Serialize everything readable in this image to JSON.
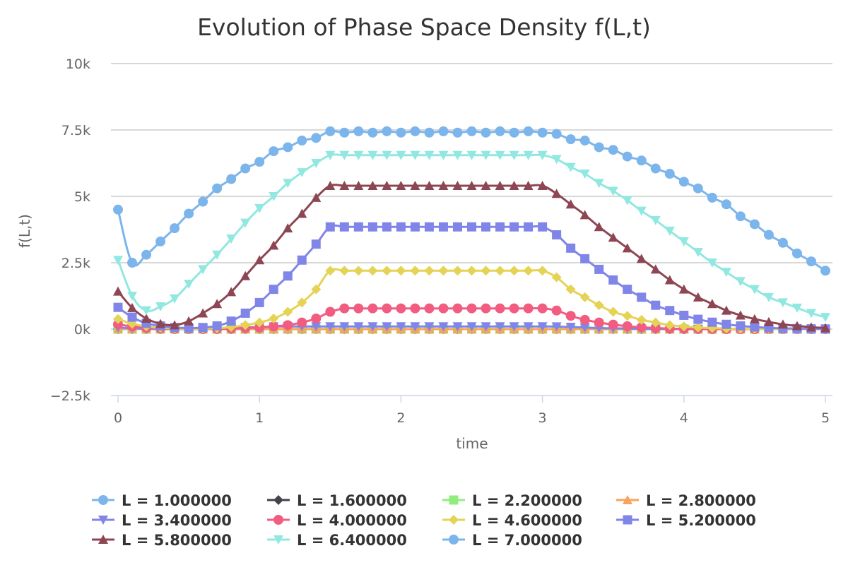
{
  "chart_data": {
    "type": "line",
    "title": "Evolution of Phase Space Density f(L,t)",
    "xlabel": "time",
    "ylabel": "f(L,t)",
    "xlim": [
      0,
      5
    ],
    "ylim": [
      -2500,
      10000
    ],
    "x_ticks": [
      "0",
      "1",
      "2",
      "3",
      "4",
      "5"
    ],
    "y_ticks": [
      "−2.5k",
      "0k",
      "2.5k",
      "5k",
      "7.5k",
      "10k"
    ],
    "x": [
      0,
      0.1,
      0.2,
      0.3,
      0.4,
      0.5,
      0.6,
      0.7,
      0.8,
      0.9,
      1.0,
      1.1,
      1.2,
      1.3,
      1.4,
      1.5,
      1.6,
      1.7,
      1.8,
      1.9,
      2.0,
      2.1,
      2.2,
      2.3,
      2.4,
      2.5,
      2.6,
      2.7,
      2.8,
      2.9,
      3.0,
      3.1,
      3.2,
      3.3,
      3.4,
      3.5,
      3.6,
      3.7,
      3.8,
      3.9,
      4.0,
      4.1,
      4.2,
      4.3,
      4.4,
      4.5,
      4.6,
      4.7,
      4.8,
      4.9,
      5.0
    ],
    "grid": true,
    "legend_position": "bottom",
    "series": [
      {
        "name": "L = 1.000000",
        "color": "#7cb5ec",
        "marker": "circle",
        "values": [
          0,
          0,
          0,
          0,
          0,
          0,
          0,
          0,
          0,
          0,
          0,
          0,
          0,
          0,
          0,
          0,
          0,
          0,
          0,
          0,
          0,
          0,
          0,
          0,
          0,
          0,
          0,
          0,
          0,
          0,
          0,
          0,
          0,
          0,
          0,
          0,
          0,
          0,
          0,
          0,
          0,
          0,
          0,
          0,
          0,
          0,
          0,
          0,
          0,
          0,
          0
        ]
      },
      {
        "name": "L = 1.600000",
        "color": "#434348",
        "marker": "diamond",
        "values": [
          0,
          0,
          0,
          0,
          0,
          0,
          0,
          0,
          0,
          0,
          0,
          0,
          0,
          0,
          0,
          0,
          0,
          0,
          0,
          0,
          0,
          0,
          0,
          0,
          0,
          0,
          0,
          0,
          0,
          0,
          0,
          0,
          0,
          0,
          0,
          0,
          0,
          0,
          0,
          0,
          0,
          0,
          0,
          0,
          0,
          0,
          0,
          0,
          0,
          0,
          0
        ]
      },
      {
        "name": "L = 2.200000",
        "color": "#90ed7d",
        "marker": "square",
        "values": [
          0,
          0,
          0,
          0,
          0,
          0,
          0,
          0,
          0,
          0,
          0,
          0,
          0,
          0,
          0,
          0,
          0,
          0,
          0,
          0,
          0,
          0,
          0,
          0,
          0,
          0,
          0,
          0,
          0,
          0,
          0,
          0,
          0,
          0,
          0,
          0,
          0,
          0,
          0,
          0,
          0,
          0,
          0,
          0,
          0,
          0,
          0,
          0,
          0,
          0,
          0
        ]
      },
      {
        "name": "L = 2.800000",
        "color": "#f7a35c",
        "marker": "triangle",
        "values": [
          10,
          5,
          5,
          0,
          0,
          0,
          0,
          0,
          0,
          0,
          0,
          0,
          0,
          0,
          0,
          0,
          0,
          0,
          0,
          0,
          0,
          0,
          0,
          0,
          0,
          0,
          0,
          0,
          0,
          0,
          0,
          0,
          0,
          0,
          0,
          0,
          0,
          0,
          0,
          0,
          0,
          0,
          0,
          0,
          0,
          0,
          0,
          0,
          0,
          0,
          0
        ]
      },
      {
        "name": "L = 3.400000",
        "color": "#8085e9",
        "marker": "triangle-down",
        "values": [
          60,
          30,
          15,
          10,
          5,
          5,
          10,
          20,
          40,
          60,
          80,
          95,
          100,
          100,
          100,
          100,
          100,
          100,
          100,
          100,
          100,
          100,
          100,
          100,
          100,
          100,
          100,
          100,
          100,
          100,
          100,
          95,
          80,
          60,
          40,
          30,
          20,
          10,
          5,
          5,
          0,
          0,
          0,
          0,
          0,
          0,
          0,
          0,
          0,
          0,
          0
        ]
      },
      {
        "name": "L = 4.000000",
        "color": "#f15c80",
        "marker": "circle",
        "values": [
          180,
          100,
          50,
          30,
          10,
          5,
          5,
          10,
          20,
          40,
          60,
          100,
          150,
          250,
          400,
          650,
          780,
          780,
          780,
          780,
          780,
          780,
          780,
          780,
          780,
          780,
          780,
          780,
          780,
          780,
          780,
          700,
          500,
          350,
          250,
          170,
          110,
          70,
          40,
          20,
          10,
          5,
          0,
          0,
          0,
          0,
          0,
          0,
          0,
          0,
          0
        ]
      },
      {
        "name": "L = 4.600000",
        "color": "#e4d354",
        "marker": "diamond",
        "values": [
          380,
          200,
          100,
          50,
          20,
          10,
          15,
          30,
          80,
          150,
          250,
          400,
          650,
          1000,
          1500,
          2200,
          2200,
          2200,
          2200,
          2200,
          2200,
          2200,
          2200,
          2200,
          2200,
          2200,
          2200,
          2200,
          2200,
          2200,
          2200,
          1950,
          1500,
          1200,
          900,
          650,
          500,
          350,
          250,
          150,
          100,
          60,
          40,
          20,
          10,
          5,
          0,
          0,
          0,
          0,
          0
        ]
      },
      {
        "name": "L = 5.200000",
        "color": "#8085e8",
        "marker": "square",
        "values": [
          820,
          450,
          220,
          120,
          60,
          40,
          60,
          120,
          300,
          600,
          1000,
          1500,
          2000,
          2600,
          3200,
          3850,
          3850,
          3850,
          3850,
          3850,
          3850,
          3850,
          3850,
          3850,
          3850,
          3850,
          3850,
          3850,
          3850,
          3850,
          3850,
          3550,
          3050,
          2650,
          2250,
          1850,
          1500,
          1200,
          900,
          700,
          520,
          370,
          260,
          180,
          120,
          80,
          50,
          30,
          20,
          10,
          5
        ]
      },
      {
        "name": "L = 5.800000",
        "color": "#8d4653",
        "marker": "triangle",
        "values": [
          1420,
          800,
          400,
          200,
          150,
          300,
          600,
          950,
          1400,
          2000,
          2600,
          3150,
          3800,
          4350,
          4950,
          5400,
          5400,
          5400,
          5400,
          5400,
          5400,
          5400,
          5400,
          5400,
          5400,
          5400,
          5400,
          5400,
          5400,
          5400,
          5400,
          5100,
          4700,
          4300,
          3850,
          3450,
          3050,
          2650,
          2250,
          1850,
          1500,
          1200,
          950,
          700,
          520,
          380,
          270,
          180,
          120,
          70,
          40
        ]
      },
      {
        "name": "L = 6.400000",
        "color": "#91e8e1",
        "marker": "triangle-down",
        "values": [
          2600,
          1250,
          700,
          850,
          1150,
          1700,
          2250,
          2800,
          3400,
          4000,
          4550,
          5000,
          5500,
          5900,
          6250,
          6550,
          6550,
          6550,
          6550,
          6550,
          6550,
          6550,
          6550,
          6550,
          6550,
          6550,
          6550,
          6550,
          6550,
          6550,
          6550,
          6400,
          6100,
          5850,
          5500,
          5200,
          4850,
          4450,
          4100,
          3700,
          3300,
          2900,
          2500,
          2150,
          1800,
          1500,
          1200,
          1000,
          800,
          600,
          450
        ]
      },
      {
        "name": "L = 7.000000",
        "color": "#7cb5ec",
        "marker": "circle",
        "values": [
          4500,
          2500,
          2800,
          3300,
          3800,
          4350,
          4800,
          5300,
          5650,
          6050,
          6300,
          6700,
          6850,
          7100,
          7200,
          7450,
          7400,
          7450,
          7400,
          7450,
          7400,
          7450,
          7400,
          7450,
          7400,
          7450,
          7400,
          7450,
          7400,
          7450,
          7400,
          7350,
          7150,
          7100,
          6850,
          6750,
          6500,
          6350,
          6050,
          5850,
          5550,
          5300,
          4950,
          4700,
          4250,
          3950,
          3550,
          3250,
          2850,
          2550,
          2200
        ]
      }
    ]
  }
}
